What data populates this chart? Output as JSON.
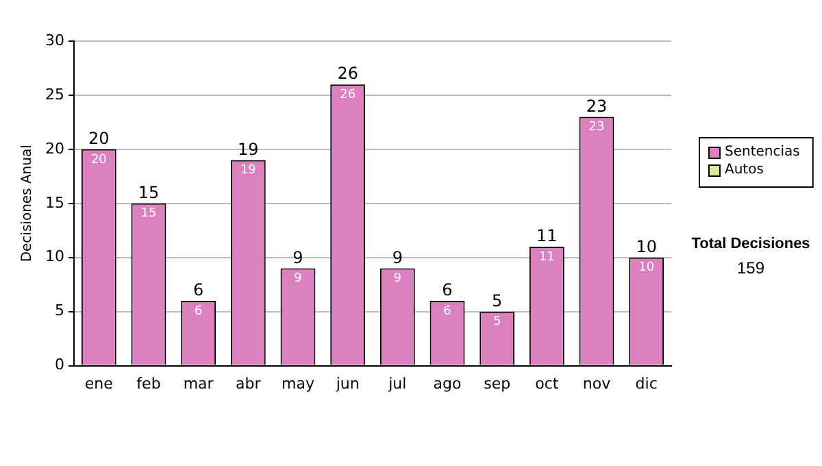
{
  "chart_data": {
    "type": "bar",
    "ylabel": "Decisiones Anual",
    "categories": [
      "ene",
      "feb",
      "mar",
      "abr",
      "may",
      "jun",
      "jul",
      "ago",
      "sep",
      "oct",
      "nov",
      "dic"
    ],
    "series": [
      {
        "name": "Sentencias",
        "color": "#dd80c0",
        "values": [
          20,
          15,
          6,
          19,
          9,
          26,
          9,
          6,
          5,
          11,
          23,
          10
        ]
      },
      {
        "name": "Autos",
        "color": "#d8ec9c",
        "values": [
          null,
          null,
          null,
          null,
          null,
          null,
          null,
          null,
          null,
          null,
          null,
          null
        ]
      }
    ],
    "stacked": true,
    "ylim": [
      0,
      30
    ],
    "yticks": [
      0,
      5,
      10,
      15,
      20,
      25,
      30
    ],
    "grid": "y",
    "legend": "right",
    "data_labels": true,
    "totals": [
      "20",
      "15",
      "6",
      "19",
      "9",
      "26",
      "9",
      "6",
      "5",
      "11",
      "23",
      "10"
    ],
    "annotations": [
      "Total Decisiones",
      "159"
    ]
  }
}
